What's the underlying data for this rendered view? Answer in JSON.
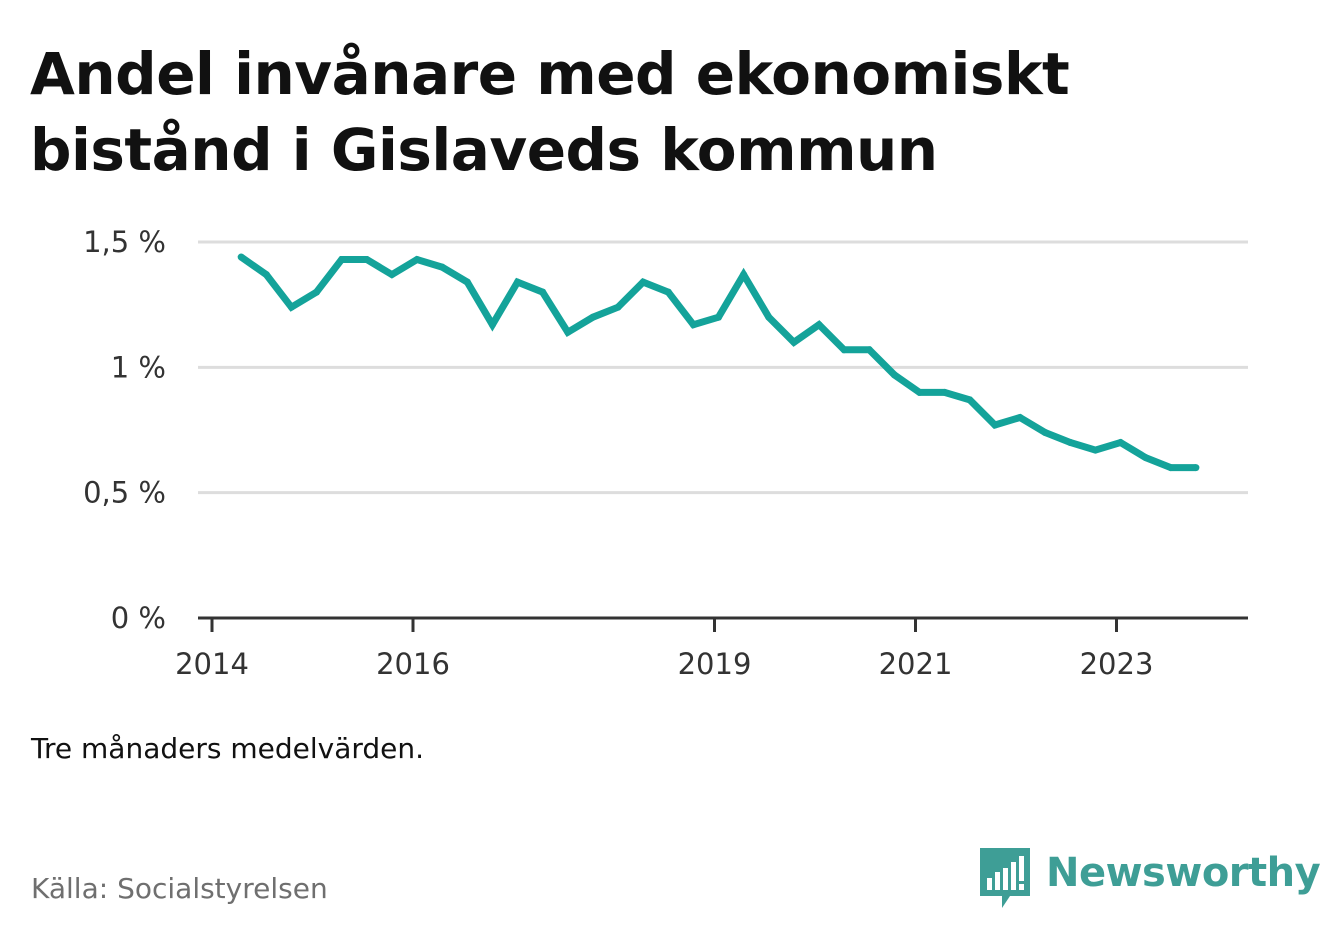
{
  "title": "Andel invånare med ekonomiskt bistånd i Gislaveds kommun",
  "note": "Tre månaders medelvärden.",
  "source": "Källa: Socialstyrelsen",
  "brand": {
    "name": "Newsworthy",
    "icon": "newsworthy-logo-icon",
    "color": "#3e9e96"
  },
  "colors": {
    "line": "#14a39a",
    "grid": "#dddddd",
    "axis": "#333333"
  },
  "chart_data": {
    "type": "line",
    "title": "Andel invånare med ekonomiskt bistånd i Gislaveds kommun",
    "xlabel": "",
    "ylabel": "",
    "x_tick_values": [
      2014,
      2016,
      2019,
      2021,
      2023
    ],
    "x_tick_labels": [
      "2014",
      "2016",
      "2019",
      "2021",
      "2023"
    ],
    "y_tick_values": [
      0,
      0.5,
      1,
      1.5
    ],
    "y_tick_labels": [
      "0 %",
      "0,5 %",
      "1 %",
      "1,5 %"
    ],
    "ylim": [
      0,
      1.5
    ],
    "xlim": [
      2014,
      2024.3
    ],
    "grid": true,
    "legend": "none",
    "series": [
      {
        "name": "Andel invånare med ekonomiskt bistånd",
        "x": [
          2014.29,
          2014.54,
          2014.79,
          2015.04,
          2015.29,
          2015.54,
          2015.79,
          2016.04,
          2016.29,
          2016.54,
          2016.79,
          2017.04,
          2017.29,
          2017.54,
          2017.79,
          2018.04,
          2018.29,
          2018.54,
          2018.79,
          2019.04,
          2019.29,
          2019.54,
          2019.79,
          2020.04,
          2020.29,
          2020.54,
          2020.79,
          2021.04,
          2021.29,
          2021.54,
          2021.79,
          2022.04,
          2022.29,
          2022.54,
          2022.79,
          2023.04,
          2023.29,
          2023.54,
          2023.79
        ],
        "values": [
          1.44,
          1.37,
          1.24,
          1.3,
          1.43,
          1.43,
          1.37,
          1.43,
          1.4,
          1.34,
          1.17,
          1.34,
          1.3,
          1.14,
          1.2,
          1.24,
          1.34,
          1.3,
          1.17,
          1.2,
          1.37,
          1.2,
          1.1,
          1.17,
          1.07,
          1.07,
          0.97,
          0.9,
          0.9,
          0.87,
          0.77,
          0.8,
          0.74,
          0.7,
          0.67,
          0.7,
          0.64,
          0.6,
          0.6
        ]
      }
    ]
  }
}
